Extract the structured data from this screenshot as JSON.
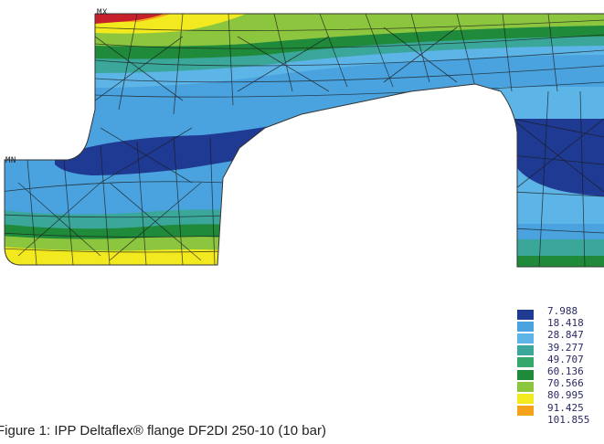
{
  "plot": {
    "max_label": "MX",
    "min_label": "MN"
  },
  "legend": {
    "levels": [
      {
        "value": "7.988",
        "color": "#1f3a93"
      },
      {
        "value": "18.418",
        "color": "#4aa3df"
      },
      {
        "value": "28.847",
        "color": "#5db4e6"
      },
      {
        "value": "39.277",
        "color": "#3aa79a"
      },
      {
        "value": "49.707",
        "color": "#37a86b"
      },
      {
        "value": "60.136",
        "color": "#1f8a3a"
      },
      {
        "value": "70.566",
        "color": "#8cc63f"
      },
      {
        "value": "80.995",
        "color": "#f2ea1f"
      },
      {
        "value": "91.425",
        "color": "#f5a21b"
      },
      {
        "value": "101.855",
        "color": "#c8202a"
      }
    ]
  },
  "caption": "Figure 1: IPP Deltaflex® flange DF2DI 250-10 (10 bar)"
}
